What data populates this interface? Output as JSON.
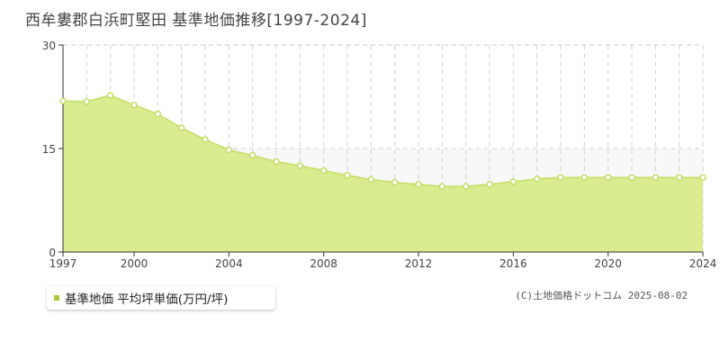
{
  "chart_data": {
    "type": "area",
    "title": "西牟婁郡白浜町堅田 基準地価推移[1997-2024]",
    "x": [
      1997,
      1998,
      1999,
      2000,
      2001,
      2002,
      2003,
      2004,
      2005,
      2006,
      2007,
      2008,
      2009,
      2010,
      2011,
      2012,
      2013,
      2014,
      2015,
      2016,
      2017,
      2018,
      2019,
      2020,
      2021,
      2022,
      2023,
      2024
    ],
    "series": [
      {
        "name": "基準地価 平均坪単価(万円/坪)",
        "values": [
          21.9,
          21.8,
          22.7,
          21.3,
          20.0,
          18.0,
          16.3,
          14.8,
          14.0,
          13.1,
          12.5,
          11.8,
          11.1,
          10.5,
          10.1,
          9.8,
          9.5,
          9.5,
          9.8,
          10.2,
          10.6,
          10.8,
          10.8,
          10.8,
          10.8,
          10.8,
          10.8,
          10.8
        ]
      }
    ],
    "xticks": [
      "1997",
      "2000",
      "2004",
      "2008",
      "2012",
      "2016",
      "2020",
      "2024"
    ],
    "yticks": [
      "0",
      "15",
      "30"
    ],
    "ylim": [
      0,
      30
    ],
    "xlim": [
      1997,
      2024
    ],
    "colors": {
      "fill": "#d9ec8f",
      "line": "#c3dd63",
      "marker": "#c3dd63",
      "legend": "#a6cc3a"
    },
    "legend_position": "bottom-left"
  },
  "copyright": "(C)土地価格ドットコム 2025-08-02"
}
